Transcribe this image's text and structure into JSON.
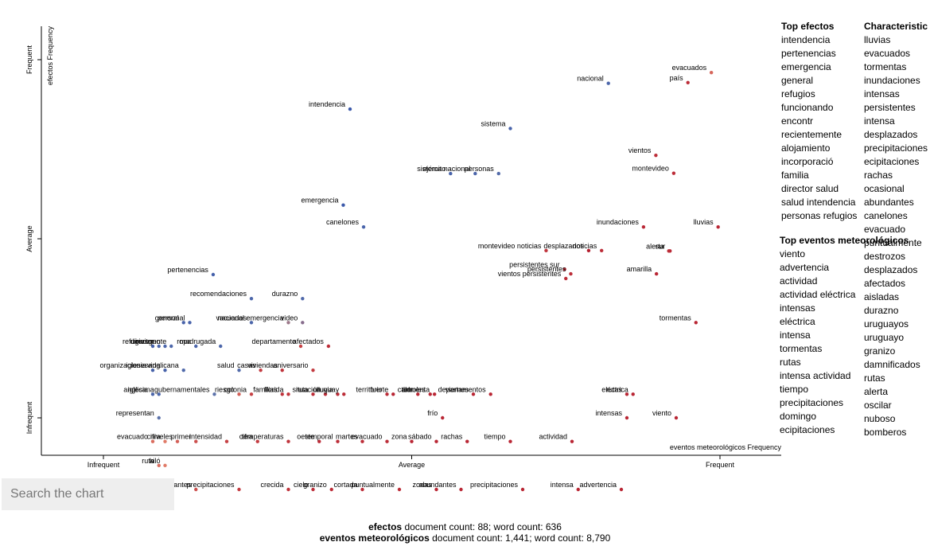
{
  "search": {
    "placeholder": "Search the chart"
  },
  "footer": {
    "line1": {
      "category": "efectos",
      "text": " document count: 88; word count: 636"
    },
    "line2": {
      "category": "eventos meteorológicos",
      "text": " document count: 1,441; word count: 8,790"
    }
  },
  "top_efectos": {
    "title": "Top efectos",
    "items": [
      "intendencia",
      "pertenencias",
      "emergencia",
      "general",
      "refugios",
      "funcionando",
      "encontr",
      "recientemente",
      "alojamiento",
      "incorporació",
      "familia",
      "director salud",
      "salud intendencia",
      "personas refugios"
    ]
  },
  "top_eventos": {
    "title": "Top eventos meteorológicos",
    "items": [
      "viento",
      "advertencia",
      "actividad",
      "actividad eléctrica",
      "intensas",
      "eléctrica",
      "intensa",
      "tormentas",
      "rutas",
      "intensa actividad",
      "tiempo",
      "precipitaciones",
      "domingo",
      "ecipitaciones"
    ]
  },
  "characteristic": {
    "title": "Characteristic",
    "items": [
      "lluvias",
      "evacuados",
      "tormentas",
      "inundaciones",
      "intensas",
      "persistentes",
      "intensa",
      "desplazados",
      "precipitaciones",
      "ecipitaciones",
      "rachas",
      "ocasional",
      "abundantes",
      "canelones",
      "evacuado",
      "puntualmente",
      "destrozos",
      "desplazados",
      "afectados",
      "aisladas",
      "durazno",
      "uruguayos",
      "uruguayo",
      "granizo",
      "damnificados",
      "rutas",
      "alerta",
      "oscilar",
      "nuboso",
      "bomberos"
    ]
  },
  "chart_data": {
    "type": "scatter",
    "x_axis": {
      "label": "eventos meteorológicos Frequency",
      "ticks": [
        "Infrequent",
        "Average",
        "Frequent"
      ]
    },
    "y_axis": {
      "label": "efectos Frequency",
      "ticks": [
        "Infrequent",
        "Average",
        "Frequent"
      ]
    },
    "x_range": [
      0,
      1
    ],
    "y_range": [
      0,
      1
    ],
    "colors": {
      "efectos": "#2c3e94",
      "eventos": "#b2182b",
      "neutral": "#f4a582"
    },
    "labeled_points": [
      {
        "term": "evacuados",
        "x": 0.986,
        "y": 0.964,
        "s": 0.45
      },
      {
        "term": "nacional",
        "x": 0.819,
        "y": 0.934,
        "s": -0.8
      },
      {
        "term": "país",
        "x": 0.948,
        "y": 0.936,
        "s": 0.85
      },
      {
        "term": "intendencia",
        "x": 0.4,
        "y": 0.862,
        "s": -1
      },
      {
        "term": "sistema",
        "x": 0.66,
        "y": 0.808,
        "s": -0.85
      },
      {
        "term": "vientos",
        "x": 0.896,
        "y": 0.733,
        "s": 0.85
      },
      {
        "term": "sistema nacional",
        "x": 0.603,
        "y": 0.682,
        "s": -0.8
      },
      {
        "term": "ejército",
        "x": 0.563,
        "y": 0.682,
        "s": -0.85
      },
      {
        "term": "personas",
        "x": 0.641,
        "y": 0.682,
        "s": -0.7
      },
      {
        "term": "montevideo",
        "x": 0.925,
        "y": 0.683,
        "s": 0.85
      },
      {
        "term": "emergencia",
        "x": 0.389,
        "y": 0.594,
        "s": -1
      },
      {
        "term": "inundaciones",
        "x": 0.876,
        "y": 0.533,
        "s": 0.9
      },
      {
        "term": "canelones",
        "x": 0.422,
        "y": 0.533,
        "s": -0.85
      },
      {
        "term": "lluvias",
        "x": 0.997,
        "y": 0.533,
        "s": 0.9
      },
      {
        "term": "montevideo noticias",
        "x": 0.718,
        "y": 0.467,
        "s": 0.8
      },
      {
        "term": "desplazados",
        "x": 0.787,
        "y": 0.467,
        "s": 0.95
      },
      {
        "term": "noticias",
        "x": 0.808,
        "y": 0.467,
        "s": 0.85
      },
      {
        "term": "sur",
        "x": 0.919,
        "y": 0.466,
        "s": 0.9
      },
      {
        "term": "alerta",
        "x": 0.917,
        "y": 0.466,
        "s": 0.85
      },
      {
        "term": "persistentes sur",
        "x": 0.748,
        "y": 0.415,
        "s": 0.85
      },
      {
        "term": "persistentes",
        "x": 0.758,
        "y": 0.402,
        "s": 0.85
      },
      {
        "term": "amarilla",
        "x": 0.897,
        "y": 0.402,
        "s": 0.9
      },
      {
        "term": "vientos persistentes",
        "x": 0.75,
        "y": 0.389,
        "s": 0.85
      },
      {
        "term": "pertenencias",
        "x": 0.178,
        "y": 0.4,
        "s": -0.9
      },
      {
        "term": "recomendaciones",
        "x": 0.24,
        "y": 0.333,
        "s": -0.8
      },
      {
        "term": "durazno",
        "x": 0.323,
        "y": 0.333,
        "s": -0.75
      },
      {
        "term": "personal",
        "x": 0.14,
        "y": 0.266,
        "s": -0.85
      },
      {
        "term": "nacional emergencia",
        "x": 0.3,
        "y": 0.266,
        "s": -0.4
      },
      {
        "term": "general",
        "x": 0.13,
        "y": 0.266,
        "s": -0.85
      },
      {
        "term": "vacuados",
        "x": 0.24,
        "y": 0.266,
        "s": -0.8
      },
      {
        "term": "video",
        "x": 0.323,
        "y": 0.266,
        "s": -0.5
      },
      {
        "term": "tormentas",
        "x": 0.961,
        "y": 0.266,
        "s": 0.9
      },
      {
        "term": "director",
        "x": 0.09,
        "y": 0.2,
        "s": -0.85
      },
      {
        "term": "refugios",
        "x": 0.08,
        "y": 0.2,
        "s": -0.9
      },
      {
        "term": "invierno",
        "x": 0.1,
        "y": 0.2,
        "s": -0.8
      },
      {
        "term": "gente",
        "x": 0.11,
        "y": 0.2,
        "s": -0.8
      },
      {
        "term": "ropa",
        "x": 0.15,
        "y": 0.2,
        "s": -0.8
      },
      {
        "term": "madrugada",
        "x": 0.19,
        "y": 0.2,
        "s": -0.8
      },
      {
        "term": "departamento",
        "x": 0.32,
        "y": 0.2,
        "s": 0.7
      },
      {
        "term": "afectados",
        "x": 0.365,
        "y": 0.2,
        "s": 0.85
      },
      {
        "term": "organizaciones",
        "x": 0.08,
        "y": 0.133,
        "s": -0.85
      },
      {
        "term": "vida",
        "x": 0.1,
        "y": 0.133,
        "s": -0.85
      },
      {
        "term": "iglesia anglicana",
        "x": 0.13,
        "y": 0.133,
        "s": -0.75
      },
      {
        "term": "salud",
        "x": 0.22,
        "y": 0.133,
        "s": -0.7
      },
      {
        "term": "casas",
        "x": 0.255,
        "y": 0.133,
        "s": 0.75
      },
      {
        "term": "viviendas",
        "x": 0.29,
        "y": 0.133,
        "s": 0.8
      },
      {
        "term": "aniversario",
        "x": 0.34,
        "y": 0.133,
        "s": 0.75
      },
      {
        "term": "iglesia",
        "x": 0.08,
        "y": 0.066,
        "s": -0.8
      },
      {
        "term": "riesgo",
        "x": 0.22,
        "y": 0.066,
        "s": 0.5
      },
      {
        "term": "florida",
        "x": 0.3,
        "y": 0.066,
        "s": 0.8
      },
      {
        "term": "ruta",
        "x": 0.34,
        "y": 0.066,
        "s": 0.85
      },
      {
        "term": "lluvia",
        "x": 0.38,
        "y": 0.066,
        "s": 0.85
      },
      {
        "term": "fuerte",
        "x": 0.47,
        "y": 0.066,
        "s": 0.9
      },
      {
        "term": "tormenta",
        "x": 0.537,
        "y": 0.066,
        "s": 0.9
      },
      {
        "term": "departamentos",
        "x": 0.628,
        "y": 0.066,
        "s": 0.9
      },
      {
        "term": "rutas",
        "x": 0.849,
        "y": 0.066,
        "s": 0.9
      },
      {
        "term": "eléctrica",
        "x": 0.859,
        "y": 0.066,
        "s": 0.9
      },
      {
        "term": "anglicana",
        "x": 0.09,
        "y": 0.066,
        "s": -0.8
      },
      {
        "term": "gubernamentales",
        "x": 0.18,
        "y": 0.066,
        "s": -0.6
      },
      {
        "term": "colonia",
        "x": 0.24,
        "y": 0.066,
        "s": 0.7
      },
      {
        "term": "familias",
        "x": 0.29,
        "y": 0.066,
        "s": 0.8
      },
      {
        "term": "situación",
        "x": 0.36,
        "y": 0.066,
        "s": 0.85
      },
      {
        "term": "uruguay",
        "x": 0.39,
        "y": 0.066,
        "s": 0.85
      },
      {
        "term": "territorio",
        "x": 0.46,
        "y": 0.066,
        "s": 0.85
      },
      {
        "term": "calor",
        "x": 0.51,
        "y": 0.066,
        "s": 0.9
      },
      {
        "term": "árboles",
        "x": 0.53,
        "y": 0.066,
        "s": 0.9
      },
      {
        "term": "viernes",
        "x": 0.6,
        "y": 0.066,
        "s": 0.9
      },
      {
        "term": "representan",
        "x": 0.09,
        "y": 0.0,
        "s": -0.6
      },
      {
        "term": "frío",
        "x": 0.55,
        "y": 0.0,
        "s": 0.9
      },
      {
        "term": "intensas",
        "x": 0.849,
        "y": 0.0,
        "s": 0.9
      },
      {
        "term": "viento",
        "x": 0.929,
        "y": 0.0,
        "s": 0.9
      },
      {
        "term": "evacuado",
        "x": 0.08,
        "y": -0.066,
        "s": 0.4
      },
      {
        "term": "cifra",
        "x": 0.1,
        "y": -0.066,
        "s": 0.3
      },
      {
        "term": "niveles",
        "x": 0.12,
        "y": -0.066,
        "s": 0.5
      },
      {
        "term": "primer",
        "x": 0.15,
        "y": -0.066,
        "s": 0.6
      },
      {
        "term": "intensidad",
        "x": 0.2,
        "y": -0.066,
        "s": 0.7
      },
      {
        "term": "cifra",
        "x": 0.25,
        "y": -0.066,
        "s": 0.75
      },
      {
        "term": "temperaturas",
        "x": 0.3,
        "y": -0.066,
        "s": 0.8
      },
      {
        "term": "oeste",
        "x": 0.35,
        "y": -0.066,
        "s": 0.85
      },
      {
        "term": "temporal",
        "x": 0.38,
        "y": -0.066,
        "s": 0.85
      },
      {
        "term": "martes",
        "x": 0.42,
        "y": -0.066,
        "s": 0.85
      },
      {
        "term": "evacuado",
        "x": 0.46,
        "y": -0.066,
        "s": 0.85
      },
      {
        "term": "zona",
        "x": 0.5,
        "y": -0.066,
        "s": 0.9
      },
      {
        "term": "sábado",
        "x": 0.54,
        "y": -0.066,
        "s": 0.9
      },
      {
        "term": "rachas",
        "x": 0.59,
        "y": -0.066,
        "s": 0.9
      },
      {
        "term": "tiempo",
        "x": 0.66,
        "y": -0.066,
        "s": 0.9
      },
      {
        "term": "actividad",
        "x": 0.76,
        "y": -0.066,
        "s": 0.9
      },
      {
        "term": "ruta",
        "x": 0.09,
        "y": -0.133,
        "s": 0.4
      },
      {
        "term": "kiló",
        "x": 0.1,
        "y": -0.133,
        "s": 0.3
      },
      {
        "term": "constantes",
        "x": 0.1,
        "y": -0.2,
        "s": 0.3
      },
      {
        "term": "constantes",
        "x": 0.15,
        "y": -0.2,
        "s": 0.6
      },
      {
        "term": "precipitaciones",
        "x": 0.22,
        "y": -0.2,
        "s": 0.75
      },
      {
        "term": "crecida",
        "x": 0.3,
        "y": -0.2,
        "s": 0.8
      },
      {
        "term": "cielo",
        "x": 0.34,
        "y": -0.2,
        "s": 0.85
      },
      {
        "term": "granizo",
        "x": 0.37,
        "y": -0.2,
        "s": 0.85
      },
      {
        "term": "cortada",
        "x": 0.42,
        "y": -0.2,
        "s": 0.85
      },
      {
        "term": "puntualmente",
        "x": 0.48,
        "y": -0.2,
        "s": 0.85
      },
      {
        "term": "zonas",
        "x": 0.54,
        "y": -0.2,
        "s": 0.9
      },
      {
        "term": "abundantes",
        "x": 0.58,
        "y": -0.2,
        "s": 0.9
      },
      {
        "term": "precipitaciones",
        "x": 0.68,
        "y": -0.2,
        "s": 0.9
      },
      {
        "term": "intensa",
        "x": 0.77,
        "y": -0.2,
        "s": 0.9
      },
      {
        "term": "advertencia",
        "x": 0.84,
        "y": -0.2,
        "s": 0.9
      }
    ]
  }
}
